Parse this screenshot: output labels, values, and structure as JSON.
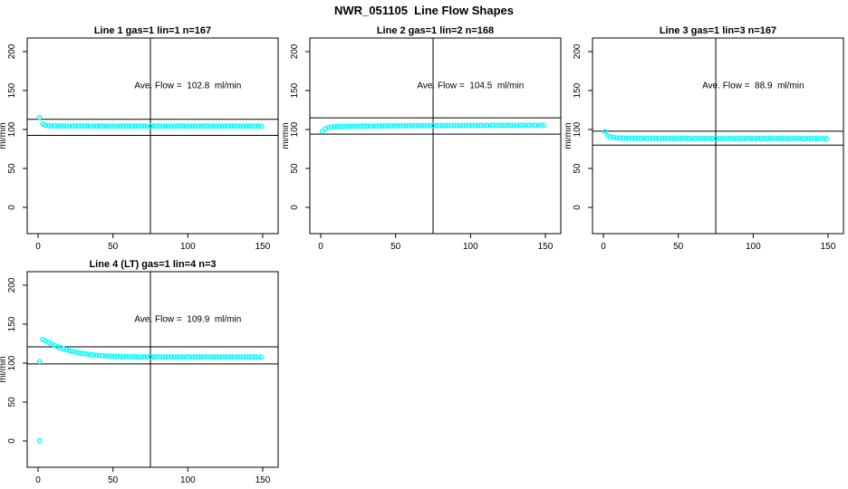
{
  "page": {
    "title": "NWR_051105  Line Flow Shapes",
    "background": "#ffffff"
  },
  "colors": {
    "marker": "#00ffff",
    "axis": "#000000",
    "text": "#000000",
    "reference_line": "#000000"
  },
  "chart_data": [
    {
      "type": "scatter",
      "title": "Line 1 gas=1 lin=1 n=167",
      "annotation": "Ave. Flow =  102.8  ml/min",
      "ave_flow_ml_min": 102.8,
      "n": 167,
      "ylabel": "ml/min",
      "xlabel": "",
      "xlim": [
        -7.3,
        160.3
      ],
      "ylim": [
        -33.7,
        217.4
      ],
      "xticks": [
        0,
        50,
        100,
        150
      ],
      "yticks": [
        0,
        50,
        100,
        150,
        200
      ],
      "hlines": [
        113.1,
        92.5
      ],
      "vline": 75,
      "annotation_pos": [
        100,
        153
      ],
      "marker": "open-circle",
      "points": [
        [
          1,
          115.5
        ],
        [
          3,
          107.0
        ],
        [
          5,
          105.4
        ],
        [
          7,
          104.9
        ],
        [
          9,
          104.6
        ],
        [
          11,
          104.8
        ],
        [
          13,
          104.3
        ],
        [
          15,
          104.7
        ],
        [
          17,
          104.4
        ],
        [
          19,
          104.6
        ],
        [
          21,
          104.2
        ],
        [
          23,
          104.5
        ],
        [
          25,
          104.7
        ],
        [
          27,
          104.3
        ],
        [
          29,
          104.6
        ],
        [
          31,
          104.4
        ],
        [
          33,
          104.7
        ],
        [
          35,
          104.2
        ],
        [
          37,
          104.5
        ],
        [
          39,
          104.3
        ],
        [
          41,
          104.6
        ],
        [
          43,
          104.4
        ],
        [
          45,
          104.2
        ],
        [
          47,
          104.5
        ],
        [
          49,
          104.3
        ],
        [
          51,
          104.6
        ],
        [
          53,
          104.2
        ],
        [
          55,
          104.4
        ],
        [
          57,
          104.6
        ],
        [
          59,
          104.3
        ],
        [
          61,
          104.5
        ],
        [
          63,
          104.2
        ],
        [
          65,
          104.4
        ],
        [
          67,
          104.6
        ],
        [
          69,
          104.3
        ],
        [
          71,
          104.5
        ],
        [
          73,
          104.2
        ],
        [
          75,
          104.4
        ],
        [
          77,
          104.6
        ],
        [
          79,
          104.3
        ],
        [
          81,
          104.5
        ],
        [
          83,
          104.2
        ],
        [
          85,
          104.4
        ],
        [
          87,
          104.3
        ],
        [
          89,
          104.5
        ],
        [
          91,
          104.2
        ],
        [
          93,
          104.4
        ],
        [
          95,
          104.6
        ],
        [
          97,
          104.3
        ],
        [
          99,
          104.5
        ],
        [
          101,
          104.2
        ],
        [
          103,
          104.4
        ],
        [
          105,
          104.3
        ],
        [
          107,
          104.5
        ],
        [
          109,
          104.2
        ],
        [
          111,
          104.4
        ],
        [
          113,
          104.6
        ],
        [
          115,
          104.3
        ],
        [
          117,
          104.5
        ],
        [
          119,
          104.2
        ],
        [
          121,
          104.4
        ],
        [
          123,
          104.3
        ],
        [
          125,
          104.5
        ],
        [
          127,
          104.2
        ],
        [
          129,
          104.4
        ],
        [
          131,
          104.6
        ],
        [
          133,
          104.3
        ],
        [
          135,
          104.5
        ],
        [
          137,
          104.2
        ],
        [
          139,
          104.4
        ],
        [
          141,
          104.3
        ],
        [
          143,
          104.5
        ],
        [
          145,
          104.2
        ],
        [
          147,
          104.4
        ],
        [
          149,
          104.3
        ]
      ]
    },
    {
      "type": "scatter",
      "title": "Line 2 gas=1 lin=2 n=168",
      "annotation": "Ave. Flow =  104.5  ml/min",
      "ave_flow_ml_min": 104.5,
      "n": 168,
      "ylabel": "ml/min",
      "xlabel": "",
      "xlim": [
        -7.3,
        160.3
      ],
      "ylim": [
        -33.7,
        217.4
      ],
      "xticks": [
        0,
        50,
        100,
        150
      ],
      "yticks": [
        0,
        50,
        100,
        150,
        200
      ],
      "hlines": [
        115.0,
        94.1
      ],
      "vline": 75,
      "annotation_pos": [
        100,
        153
      ],
      "marker": "open-circle",
      "points": [
        [
          1,
          97.5
        ],
        [
          3,
          101.0
        ],
        [
          5,
          102.6
        ],
        [
          7,
          103.2
        ],
        [
          9,
          103.5
        ],
        [
          11,
          103.7
        ],
        [
          13,
          103.8
        ],
        [
          15,
          103.9
        ],
        [
          17,
          104.0
        ],
        [
          19,
          104.1
        ],
        [
          21,
          104.2
        ],
        [
          23,
          104.2
        ],
        [
          25,
          104.3
        ],
        [
          27,
          104.3
        ],
        [
          29,
          104.4
        ],
        [
          31,
          104.4
        ],
        [
          33,
          104.5
        ],
        [
          35,
          104.5
        ],
        [
          37,
          104.5
        ],
        [
          39,
          104.6
        ],
        [
          41,
          104.6
        ],
        [
          43,
          104.6
        ],
        [
          45,
          104.7
        ],
        [
          47,
          104.7
        ],
        [
          49,
          104.7
        ],
        [
          51,
          104.7
        ],
        [
          53,
          104.8
        ],
        [
          55,
          104.8
        ],
        [
          57,
          104.8
        ],
        [
          59,
          104.8
        ],
        [
          61,
          104.9
        ],
        [
          63,
          104.9
        ],
        [
          65,
          104.9
        ],
        [
          67,
          104.9
        ],
        [
          69,
          104.9
        ],
        [
          71,
          105.0
        ],
        [
          73,
          105.0
        ],
        [
          75,
          105.0
        ],
        [
          77,
          105.0
        ],
        [
          79,
          105.0
        ],
        [
          81,
          105.0
        ],
        [
          83,
          105.1
        ],
        [
          85,
          105.1
        ],
        [
          87,
          105.1
        ],
        [
          89,
          105.1
        ],
        [
          91,
          105.1
        ],
        [
          93,
          105.1
        ],
        [
          95,
          105.1
        ],
        [
          97,
          105.2
        ],
        [
          99,
          105.2
        ],
        [
          101,
          105.2
        ],
        [
          103,
          105.2
        ],
        [
          105,
          105.2
        ],
        [
          107,
          105.2
        ],
        [
          109,
          105.2
        ],
        [
          111,
          105.2
        ],
        [
          113,
          105.3
        ],
        [
          115,
          105.3
        ],
        [
          117,
          105.3
        ],
        [
          119,
          105.3
        ],
        [
          121,
          105.3
        ],
        [
          123,
          105.3
        ],
        [
          125,
          105.3
        ],
        [
          127,
          105.3
        ],
        [
          129,
          105.3
        ],
        [
          131,
          105.3
        ],
        [
          133,
          105.4
        ],
        [
          135,
          105.4
        ],
        [
          137,
          105.4
        ],
        [
          139,
          105.4
        ],
        [
          141,
          105.4
        ],
        [
          143,
          105.4
        ],
        [
          145,
          105.4
        ],
        [
          147,
          105.4
        ],
        [
          149,
          105.4
        ]
      ]
    },
    {
      "type": "scatter",
      "title": "Line 3 gas=1 lin=3 n=167",
      "annotation": "Ave. Flow =  88.9  ml/min",
      "ave_flow_ml_min": 88.9,
      "n": 167,
      "ylabel": "ml/min",
      "xlabel": "",
      "xlim": [
        -7.3,
        160.3
      ],
      "ylim": [
        -33.7,
        217.4
      ],
      "xticks": [
        0,
        50,
        100,
        150
      ],
      "yticks": [
        0,
        50,
        100,
        150,
        200
      ],
      "hlines": [
        97.8,
        80.0
      ],
      "vline": 75,
      "annotation_pos": [
        100,
        153
      ],
      "marker": "open-circle",
      "points": [
        [
          1,
          97.5
        ],
        [
          3,
          91.8
        ],
        [
          5,
          90.4
        ],
        [
          7,
          89.8
        ],
        [
          9,
          89.4
        ],
        [
          11,
          89.2
        ],
        [
          13,
          89.0
        ],
        [
          15,
          88.9
        ],
        [
          17,
          88.8
        ],
        [
          19,
          88.8
        ],
        [
          21,
          88.7
        ],
        [
          23,
          88.7
        ],
        [
          25,
          88.6
        ],
        [
          27,
          88.6
        ],
        [
          29,
          88.7
        ],
        [
          31,
          88.5
        ],
        [
          33,
          88.6
        ],
        [
          35,
          88.4
        ],
        [
          37,
          88.6
        ],
        [
          39,
          88.5
        ],
        [
          41,
          88.7
        ],
        [
          43,
          88.4
        ],
        [
          45,
          88.6
        ],
        [
          47,
          88.5
        ],
        [
          49,
          88.4
        ],
        [
          51,
          88.6
        ],
        [
          53,
          88.5
        ],
        [
          55,
          88.7
        ],
        [
          57,
          88.4
        ],
        [
          59,
          88.6
        ],
        [
          61,
          88.5
        ],
        [
          63,
          88.4
        ],
        [
          65,
          88.6
        ],
        [
          67,
          88.5
        ],
        [
          69,
          88.4
        ],
        [
          71,
          88.6
        ],
        [
          73,
          88.5
        ],
        [
          75,
          88.4
        ],
        [
          77,
          88.6
        ],
        [
          79,
          88.5
        ],
        [
          81,
          88.4
        ],
        [
          83,
          88.6
        ],
        [
          85,
          88.5
        ],
        [
          87,
          88.4
        ],
        [
          89,
          88.6
        ],
        [
          91,
          88.5
        ],
        [
          93,
          88.4
        ],
        [
          95,
          88.6
        ],
        [
          97,
          88.5
        ],
        [
          99,
          88.4
        ],
        [
          101,
          88.5
        ],
        [
          103,
          88.6
        ],
        [
          105,
          88.4
        ],
        [
          107,
          88.5
        ],
        [
          109,
          88.4
        ],
        [
          111,
          88.6
        ],
        [
          113,
          88.5
        ],
        [
          115,
          88.4
        ],
        [
          117,
          88.5
        ],
        [
          119,
          88.6
        ],
        [
          121,
          88.4
        ],
        [
          123,
          88.5
        ],
        [
          125,
          88.4
        ],
        [
          127,
          88.5
        ],
        [
          129,
          88.6
        ],
        [
          131,
          88.4
        ],
        [
          133,
          88.5
        ],
        [
          135,
          88.4
        ],
        [
          137,
          88.5
        ],
        [
          139,
          88.4
        ],
        [
          141,
          88.5
        ],
        [
          143,
          88.3
        ],
        [
          145,
          88.5
        ],
        [
          147,
          88.4
        ],
        [
          149,
          88.3
        ]
      ]
    },
    {
      "type": "scatter",
      "title": "Line 4 (LT) gas=1 lin=4 n=3",
      "annotation": "Ave. Flow =  109.9  ml/min",
      "ave_flow_ml_min": 109.9,
      "n": 3,
      "ylabel": "ml/min",
      "xlabel": "",
      "xlim": [
        -7.3,
        160.3
      ],
      "ylim": [
        -33.7,
        217.4
      ],
      "xticks": [
        0,
        50,
        100,
        150
      ],
      "yticks": [
        0,
        50,
        100,
        150,
        200
      ],
      "hlines": [
        120.9,
        98.9
      ],
      "vline": 75,
      "annotation_pos": [
        100,
        153
      ],
      "marker": "open-circle",
      "points": [
        [
          1,
          0.5
        ],
        [
          1,
          102.0
        ],
        [
          3,
          130.5
        ],
        [
          5,
          128.5
        ],
        [
          7,
          126.5
        ],
        [
          9,
          124.5
        ],
        [
          11,
          122.8
        ],
        [
          13,
          121.2
        ],
        [
          15,
          119.7
        ],
        [
          17,
          118.4
        ],
        [
          19,
          117.2
        ],
        [
          21,
          116.1
        ],
        [
          23,
          115.1
        ],
        [
          25,
          114.2
        ],
        [
          27,
          113.4
        ],
        [
          29,
          112.7
        ],
        [
          31,
          112.1
        ],
        [
          33,
          111.5
        ],
        [
          35,
          111.0
        ],
        [
          37,
          110.6
        ],
        [
          39,
          110.2
        ],
        [
          41,
          109.9
        ],
        [
          43,
          109.6
        ],
        [
          45,
          109.3
        ],
        [
          47,
          109.1
        ],
        [
          49,
          108.9
        ],
        [
          51,
          108.7
        ],
        [
          53,
          108.6
        ],
        [
          55,
          108.5
        ],
        [
          57,
          108.4
        ],
        [
          59,
          108.3
        ],
        [
          61,
          108.3
        ],
        [
          63,
          108.2
        ],
        [
          65,
          108.2
        ],
        [
          67,
          108.1
        ],
        [
          69,
          108.1
        ],
        [
          71,
          108.0
        ],
        [
          73,
          108.0
        ],
        [
          75,
          108.0
        ],
        [
          77,
          107.9
        ],
        [
          79,
          108.1
        ],
        [
          81,
          107.9
        ],
        [
          83,
          108.0
        ],
        [
          85,
          107.8
        ],
        [
          87,
          108.0
        ],
        [
          89,
          107.9
        ],
        [
          91,
          107.8
        ],
        [
          93,
          108.0
        ],
        [
          95,
          107.9
        ],
        [
          97,
          107.8
        ],
        [
          99,
          108.0
        ],
        [
          101,
          107.9
        ],
        [
          103,
          107.8
        ],
        [
          105,
          108.0
        ],
        [
          107,
          107.9
        ],
        [
          109,
          107.8
        ],
        [
          111,
          108.0
        ],
        [
          113,
          107.9
        ],
        [
          115,
          107.8
        ],
        [
          117,
          107.9
        ],
        [
          119,
          108.0
        ],
        [
          121,
          107.8
        ],
        [
          123,
          107.9
        ],
        [
          125,
          107.8
        ],
        [
          127,
          108.0
        ],
        [
          129,
          107.9
        ],
        [
          131,
          107.8
        ],
        [
          133,
          107.9
        ],
        [
          135,
          107.8
        ],
        [
          137,
          107.9
        ],
        [
          139,
          107.8
        ],
        [
          141,
          107.9
        ],
        [
          143,
          107.8
        ],
        [
          145,
          107.9
        ],
        [
          147,
          107.8
        ],
        [
          149,
          107.8
        ]
      ]
    }
  ]
}
